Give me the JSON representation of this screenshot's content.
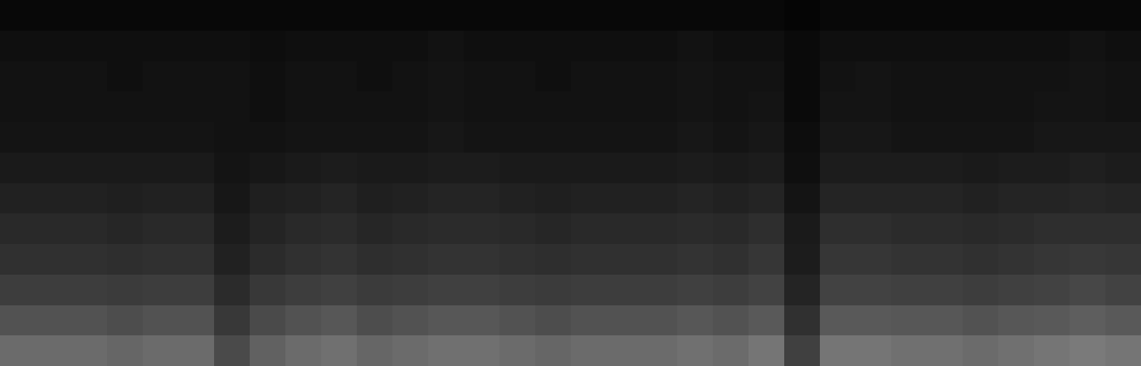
{
  "chart_data": {
    "type": "heatmap",
    "tick_labels": false,
    "zlim": [
      0,
      1
    ],
    "z": [
      [
        0.42,
        0.42,
        0.42,
        0.4,
        0.42,
        0.42,
        0.29,
        0.38,
        0.42,
        0.44,
        0.4,
        0.42,
        0.44,
        0.44,
        0.42,
        0.4,
        0.42,
        0.42,
        0.42,
        0.44,
        0.42,
        0.46,
        0.25,
        0.46,
        0.46,
        0.44,
        0.44,
        0.42,
        0.44,
        0.46,
        0.48,
        0.46
      ],
      [
        0.32,
        0.32,
        0.32,
        0.3,
        0.32,
        0.32,
        0.22,
        0.29,
        0.32,
        0.34,
        0.3,
        0.32,
        0.34,
        0.34,
        0.32,
        0.3,
        0.32,
        0.32,
        0.32,
        0.34,
        0.32,
        0.35,
        0.19,
        0.35,
        0.35,
        0.34,
        0.34,
        0.32,
        0.34,
        0.35,
        0.37,
        0.35
      ],
      [
        0.24,
        0.24,
        0.24,
        0.23,
        0.24,
        0.24,
        0.17,
        0.22,
        0.24,
        0.25,
        0.23,
        0.24,
        0.25,
        0.25,
        0.24,
        0.23,
        0.24,
        0.24,
        0.24,
        0.25,
        0.24,
        0.26,
        0.14,
        0.26,
        0.26,
        0.25,
        0.25,
        0.24,
        0.25,
        0.26,
        0.28,
        0.26
      ],
      [
        0.19,
        0.19,
        0.19,
        0.18,
        0.19,
        0.19,
        0.13,
        0.17,
        0.19,
        0.2,
        0.18,
        0.19,
        0.2,
        0.2,
        0.19,
        0.18,
        0.19,
        0.19,
        0.19,
        0.2,
        0.19,
        0.21,
        0.11,
        0.21,
        0.21,
        0.2,
        0.2,
        0.19,
        0.2,
        0.21,
        0.22,
        0.21
      ],
      [
        0.16,
        0.16,
        0.16,
        0.15,
        0.16,
        0.16,
        0.11,
        0.14,
        0.16,
        0.17,
        0.15,
        0.16,
        0.17,
        0.17,
        0.16,
        0.15,
        0.16,
        0.16,
        0.16,
        0.17,
        0.16,
        0.18,
        0.1,
        0.18,
        0.18,
        0.17,
        0.17,
        0.16,
        0.17,
        0.18,
        0.18,
        0.18
      ],
      [
        0.13,
        0.13,
        0.13,
        0.12,
        0.13,
        0.13,
        0.09,
        0.12,
        0.13,
        0.14,
        0.12,
        0.13,
        0.14,
        0.14,
        0.13,
        0.12,
        0.13,
        0.13,
        0.13,
        0.14,
        0.13,
        0.14,
        0.08,
        0.14,
        0.14,
        0.14,
        0.14,
        0.13,
        0.14,
        0.14,
        0.15,
        0.14
      ],
      [
        0.1,
        0.1,
        0.1,
        0.1,
        0.1,
        0.1,
        0.08,
        0.09,
        0.1,
        0.11,
        0.1,
        0.1,
        0.11,
        0.11,
        0.1,
        0.1,
        0.1,
        0.1,
        0.1,
        0.11,
        0.1,
        0.11,
        0.06,
        0.11,
        0.11,
        0.11,
        0.11,
        0.1,
        0.11,
        0.11,
        0.12,
        0.11
      ],
      [
        0.08,
        0.08,
        0.08,
        0.08,
        0.08,
        0.08,
        0.07,
        0.07,
        0.08,
        0.08,
        0.08,
        0.08,
        0.09,
        0.08,
        0.08,
        0.08,
        0.08,
        0.08,
        0.08,
        0.09,
        0.08,
        0.09,
        0.05,
        0.09,
        0.09,
        0.08,
        0.08,
        0.08,
        0.08,
        0.09,
        0.09,
        0.09
      ],
      [
        0.07,
        0.07,
        0.07,
        0.07,
        0.07,
        0.07,
        0.07,
        0.06,
        0.07,
        0.07,
        0.07,
        0.07,
        0.08,
        0.07,
        0.07,
        0.07,
        0.07,
        0.07,
        0.07,
        0.08,
        0.07,
        0.08,
        0.04,
        0.08,
        0.08,
        0.07,
        0.07,
        0.07,
        0.07,
        0.08,
        0.08,
        0.07
      ],
      [
        0.07,
        0.07,
        0.07,
        0.06,
        0.07,
        0.07,
        0.07,
        0.06,
        0.07,
        0.07,
        0.06,
        0.07,
        0.08,
        0.07,
        0.07,
        0.06,
        0.07,
        0.07,
        0.07,
        0.08,
        0.07,
        0.07,
        0.04,
        0.07,
        0.08,
        0.07,
        0.07,
        0.07,
        0.07,
        0.07,
        0.08,
        0.07
      ],
      [
        0.06,
        0.06,
        0.06,
        0.06,
        0.06,
        0.06,
        0.06,
        0.05,
        0.06,
        0.06,
        0.06,
        0.06,
        0.07,
        0.06,
        0.06,
        0.06,
        0.06,
        0.06,
        0.06,
        0.07,
        0.06,
        0.06,
        0.04,
        0.06,
        0.06,
        0.06,
        0.06,
        0.06,
        0.06,
        0.06,
        0.07,
        0.06
      ],
      [
        0.03,
        0.03,
        0.03,
        0.03,
        0.03,
        0.03,
        0.03,
        0.03,
        0.03,
        0.03,
        0.03,
        0.03,
        0.03,
        0.03,
        0.03,
        0.03,
        0.03,
        0.03,
        0.03,
        0.03,
        0.03,
        0.03,
        0.02,
        0.03,
        0.03,
        0.03,
        0.03,
        0.03,
        0.03,
        0.03,
        0.03,
        0.03
      ]
    ]
  }
}
